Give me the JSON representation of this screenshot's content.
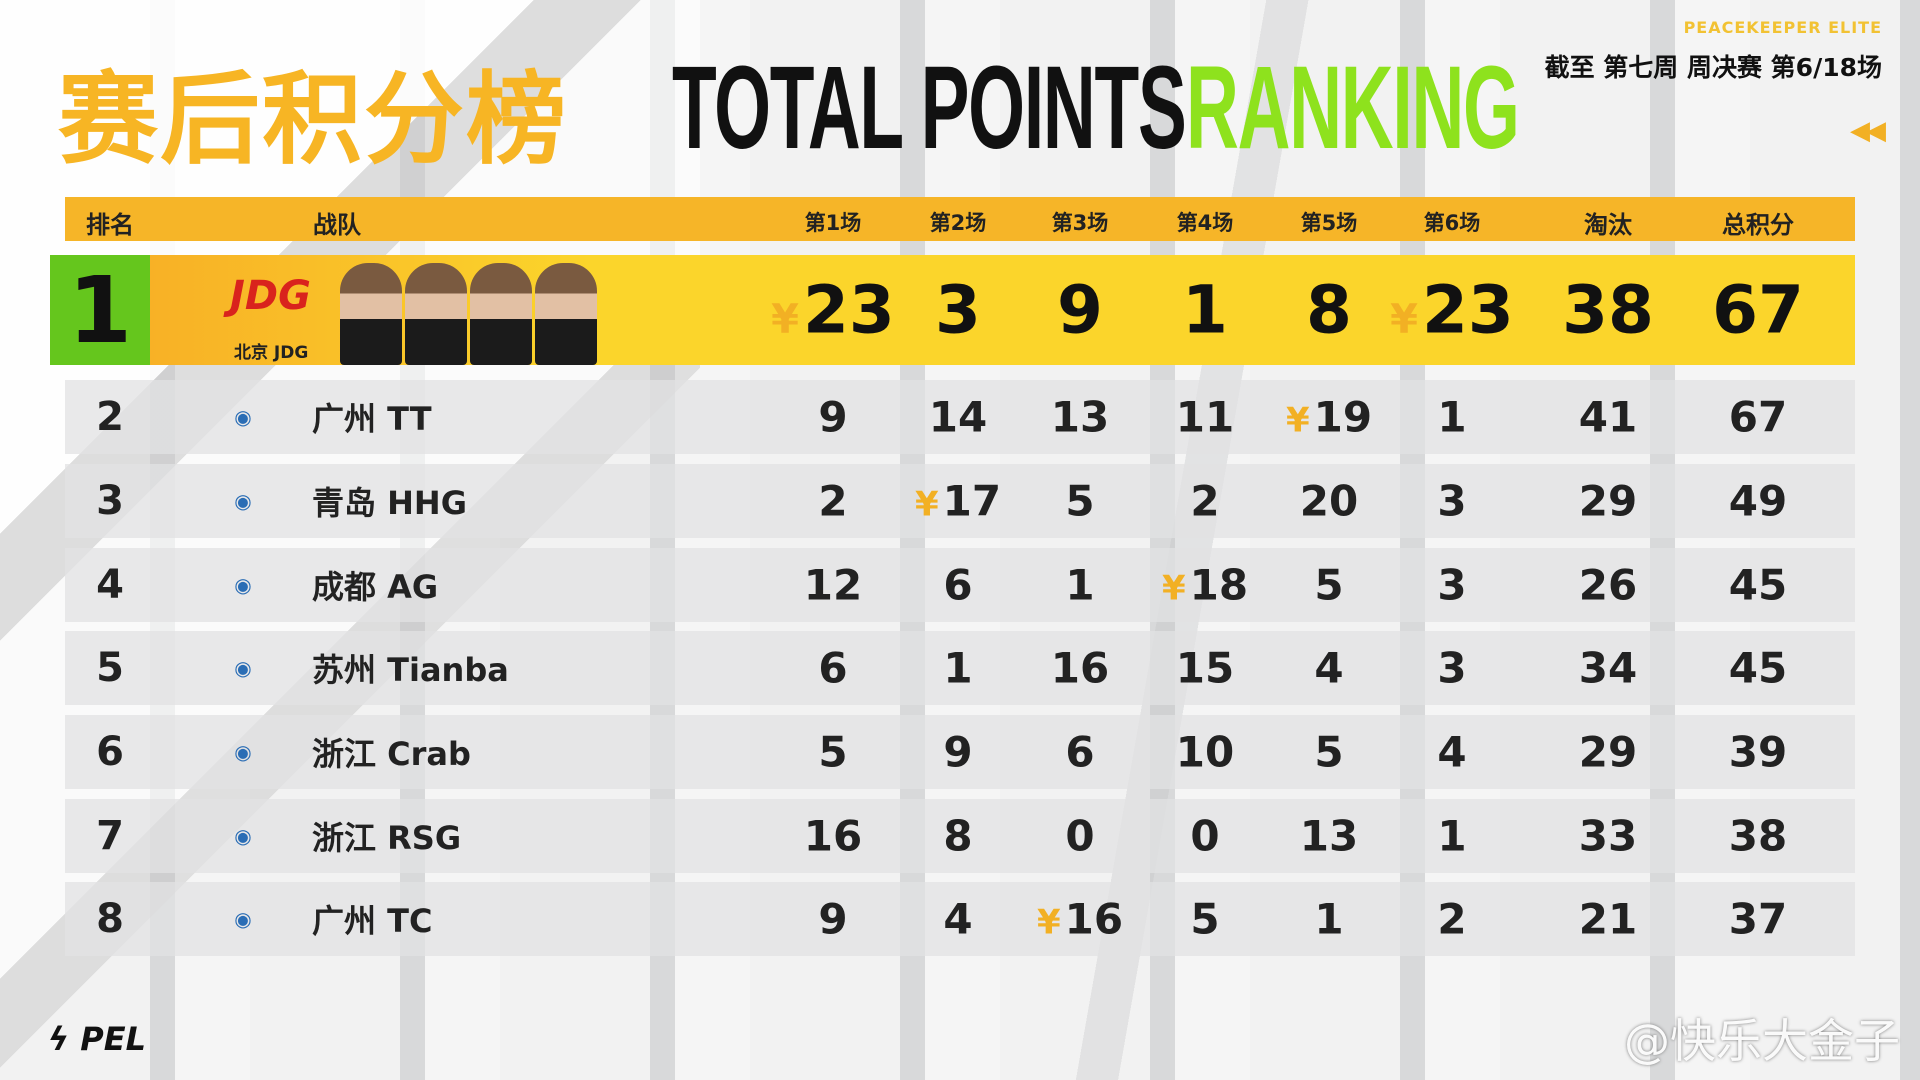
{
  "header": {
    "title_cn": "赛后积分榜",
    "title_en_1": "TOTAL POINTS",
    "title_en_2": "RANKING",
    "brand": "PEACEKEEPER ELITE",
    "subtitle": "截至 第七周 周决赛 第6/18场",
    "accent": "#f6b528",
    "green": "#8ee21d"
  },
  "columns": [
    "排名",
    "战队",
    "第1场",
    "第2场",
    "第3场",
    "第4场",
    "第5场",
    "第6场",
    "淘汰",
    "总积分"
  ],
  "rows": [
    {
      "rank": "1",
      "team": "北京 JDG",
      "logo": "JDG",
      "games": [
        "23",
        "3",
        "9",
        "1",
        "8",
        "23"
      ],
      "wins": [
        true,
        false,
        false,
        false,
        false,
        true
      ],
      "kills": "38",
      "total": "67"
    },
    {
      "rank": "2",
      "team": "广州 TT",
      "logo": "TT",
      "games": [
        "9",
        "14",
        "13",
        "11",
        "19",
        "1"
      ],
      "wins": [
        false,
        false,
        false,
        false,
        true,
        false
      ],
      "kills": "41",
      "total": "67"
    },
    {
      "rank": "3",
      "team": "青岛 HHG",
      "logo": "HHG",
      "games": [
        "2",
        "17",
        "5",
        "2",
        "20",
        "3"
      ],
      "wins": [
        false,
        true,
        false,
        false,
        false,
        false
      ],
      "kills": "29",
      "total": "49"
    },
    {
      "rank": "4",
      "team": "成都 AG",
      "logo": "AG",
      "games": [
        "12",
        "6",
        "1",
        "18",
        "5",
        "3"
      ],
      "wins": [
        false,
        false,
        false,
        true,
        false,
        false
      ],
      "kills": "26",
      "total": "45"
    },
    {
      "rank": "5",
      "team": "苏州 Tianba",
      "logo": "TB",
      "games": [
        "6",
        "1",
        "16",
        "15",
        "4",
        "3"
      ],
      "wins": [
        false,
        false,
        false,
        false,
        false,
        false
      ],
      "kills": "34",
      "total": "45"
    },
    {
      "rank": "6",
      "team": "浙江 Crab",
      "logo": "CRAB",
      "games": [
        "5",
        "9",
        "6",
        "10",
        "5",
        "4"
      ],
      "wins": [
        false,
        false,
        false,
        false,
        false,
        false
      ],
      "kills": "29",
      "total": "39"
    },
    {
      "rank": "7",
      "team": "浙江 RSG",
      "logo": "RSG",
      "games": [
        "16",
        "8",
        "0",
        "0",
        "13",
        "1"
      ],
      "wins": [
        false,
        false,
        false,
        false,
        false,
        false
      ],
      "kills": "33",
      "total": "38"
    },
    {
      "rank": "8",
      "team": "广州 TC",
      "logo": "THECHOSEN",
      "games": [
        "9",
        "4",
        "16",
        "5",
        "1",
        "2"
      ],
      "wins": [
        false,
        false,
        true,
        false,
        false,
        false
      ],
      "kills": "21",
      "total": "37"
    }
  ],
  "footer": {
    "logo": "PEL",
    "watermark": "@快乐大金子"
  }
}
